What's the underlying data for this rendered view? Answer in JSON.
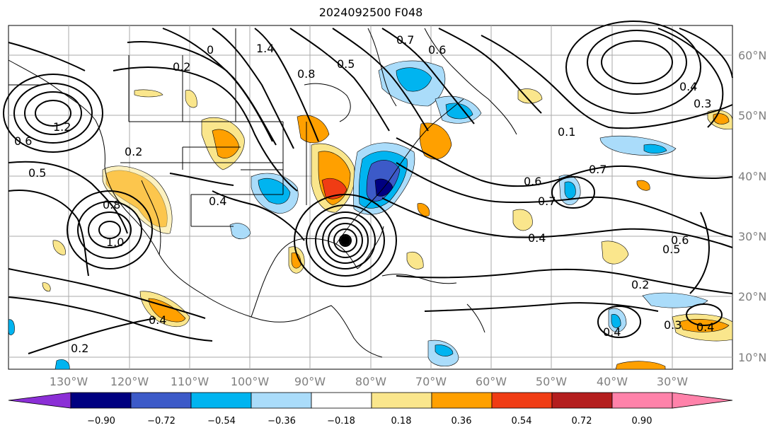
{
  "title": "2024092500 F048",
  "map": {
    "lon_labels": [
      "130°W",
      "120°W",
      "110°W",
      "100°W",
      "90°W",
      "80°W",
      "70°W",
      "60°W",
      "50°W",
      "40°W",
      "30°W"
    ],
    "lat_labels": [
      "60°N",
      "50°N",
      "40°N",
      "30°N",
      "20°N",
      "10°N"
    ],
    "contour_labels": [
      "1.4",
      "0.2",
      "0",
      "0.5",
      "0.7",
      "0.6",
      "1.2",
      "0.2",
      "0.5",
      "0.6",
      "0.4",
      "0.8",
      "0.6",
      "0.4",
      "0.6",
      "0.7",
      "0.5",
      "0.2",
      "0.4",
      "0.3",
      "0.4",
      "0.2",
      "0.4",
      "0.8",
      "0.4",
      "0.1",
      "0.3",
      "1.0",
      "0.7"
    ],
    "colors": {
      "strong_negative": "#000080",
      "negative_mid": "#3c5ac8",
      "negative": "#00b4f0",
      "weak_negative": "#aadcfa",
      "weak_positive": "#fae68c",
      "positive": "#ffa000",
      "strong_positive": "#f03c14",
      "very_strong_positive": "#b41e1e"
    }
  },
  "colorbar": {
    "ticks": [
      "−0.90",
      "−0.72",
      "−0.54",
      "−0.36",
      "−0.18",
      "0.18",
      "0.36",
      "0.54",
      "0.72",
      "0.90"
    ],
    "colors": [
      "#8b2fd6",
      "#000080",
      "#3c5ac8",
      "#00b4f0",
      "#aadcfa",
      "#ffffff",
      "#fae68c",
      "#ffa000",
      "#f03c14",
      "#b41e1e",
      "#ff82aa"
    ]
  }
}
